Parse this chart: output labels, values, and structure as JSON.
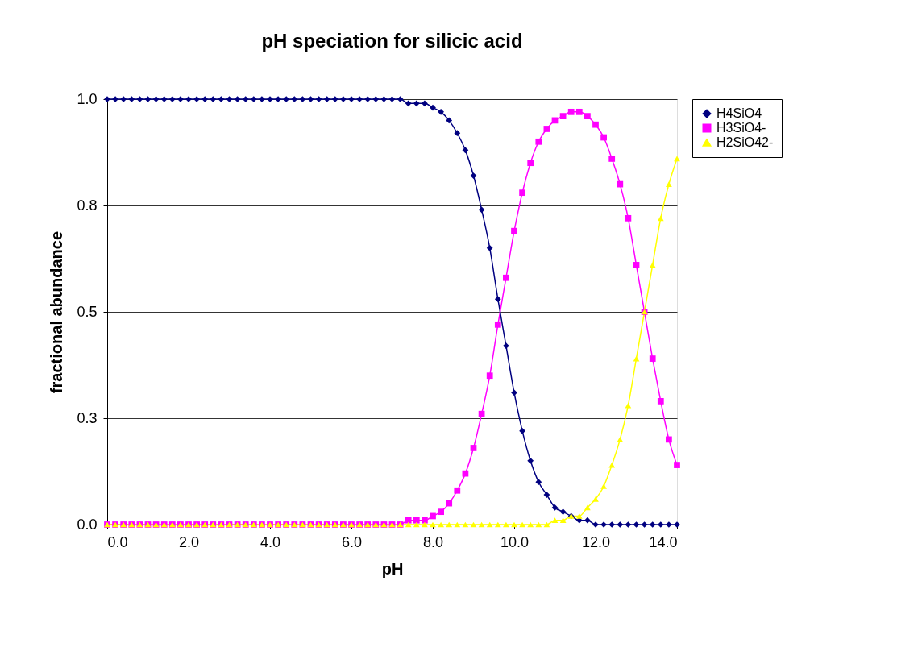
{
  "chart_data": {
    "type": "line",
    "title": "pH speciation for silicic acid",
    "xlabel": "pH",
    "ylabel": "fractional abundance",
    "x": [
      0,
      0.2,
      0.4,
      0.6,
      0.8,
      1,
      1.2,
      1.4,
      1.6,
      1.8,
      2,
      2.2,
      2.4,
      2.6,
      2.8,
      3,
      3.2,
      3.4,
      3.6,
      3.8,
      4,
      4.2,
      4.4,
      4.6,
      4.8,
      5,
      5.2,
      5.4,
      5.6,
      5.8,
      6,
      6.2,
      6.4,
      6.6,
      6.8,
      7,
      7.2,
      7.4,
      7.6,
      7.8,
      8,
      8.2,
      8.4,
      8.6,
      8.8,
      9,
      9.2,
      9.4,
      9.6,
      9.8,
      10,
      10.2,
      10.4,
      10.6,
      10.8,
      11,
      11.2,
      11.4,
      11.6,
      11.8,
      12,
      12.2,
      12.4,
      12.6,
      12.8,
      13,
      13.2,
      13.4,
      13.6,
      13.8,
      14
    ],
    "series": [
      {
        "name": "H4SiO4",
        "color": "#000080",
        "marker": "diamond",
        "values": [
          1,
          1,
          1,
          1,
          1,
          1,
          1,
          1,
          1,
          1,
          1,
          1,
          1,
          1,
          1,
          1,
          1,
          1,
          1,
          1,
          1,
          1,
          1,
          1,
          1,
          1,
          1,
          1,
          1,
          1,
          1,
          1,
          1,
          1,
          1,
          1,
          1,
          0.99,
          0.99,
          0.99,
          0.98,
          0.97,
          0.95,
          0.92,
          0.88,
          0.82,
          0.74,
          0.65,
          0.53,
          0.42,
          0.31,
          0.22,
          0.15,
          0.1,
          0.07,
          0.04,
          0.03,
          0.02,
          0.01,
          0.01,
          0,
          0,
          0,
          0,
          0,
          0,
          0,
          0,
          0,
          0,
          0
        ]
      },
      {
        "name": "H3SiO4-",
        "color": "#ff00ff",
        "marker": "square",
        "values": [
          0,
          0,
          0,
          0,
          0,
          0,
          0,
          0,
          0,
          0,
          0,
          0,
          0,
          0,
          0,
          0,
          0,
          0,
          0,
          0,
          0,
          0,
          0,
          0,
          0,
          0,
          0,
          0,
          0,
          0,
          0,
          0,
          0,
          0,
          0,
          0,
          0,
          0.01,
          0.01,
          0.01,
          0.02,
          0.03,
          0.05,
          0.08,
          0.12,
          0.18,
          0.26,
          0.35,
          0.47,
          0.58,
          0.69,
          0.78,
          0.85,
          0.9,
          0.93,
          0.95,
          0.96,
          0.97,
          0.97,
          0.96,
          0.94,
          0.91,
          0.86,
          0.8,
          0.72,
          0.61,
          0.5,
          0.39,
          0.29,
          0.2,
          0.14
        ]
      },
      {
        "name": "H2SiO42-",
        "color": "#ffff00",
        "marker": "triangle",
        "values": [
          0,
          0,
          0,
          0,
          0,
          0,
          0,
          0,
          0,
          0,
          0,
          0,
          0,
          0,
          0,
          0,
          0,
          0,
          0,
          0,
          0,
          0,
          0,
          0,
          0,
          0,
          0,
          0,
          0,
          0,
          0,
          0,
          0,
          0,
          0,
          0,
          0,
          0,
          0,
          0,
          0,
          0,
          0,
          0,
          0,
          0,
          0,
          0,
          0,
          0,
          0,
          0,
          0,
          0,
          0,
          0.01,
          0.01,
          0.02,
          0.02,
          0.04,
          0.06,
          0.09,
          0.14,
          0.2,
          0.28,
          0.39,
          0.5,
          0.61,
          0.72,
          0.8,
          0.86
        ]
      }
    ],
    "xlim": [
      0,
      14
    ],
    "xticks": [
      {
        "value": 0,
        "label": "0.0"
      },
      {
        "value": 2,
        "label": "2.0"
      },
      {
        "value": 4,
        "label": "4.0"
      },
      {
        "value": 6,
        "label": "6.0"
      },
      {
        "value": 8,
        "label": "8.0"
      },
      {
        "value": 10,
        "label": "10.0"
      },
      {
        "value": 12,
        "label": "12.0"
      },
      {
        "value": 14,
        "label": "14.0"
      }
    ],
    "ylim": [
      0,
      1
    ],
    "yticks": [
      {
        "value": 0,
        "label": "0.0"
      },
      {
        "value": 0.25,
        "label": "0.3"
      },
      {
        "value": 0.5,
        "label": "0.5"
      },
      {
        "value": 0.75,
        "label": "0.8"
      },
      {
        "value": 1,
        "label": "1.0"
      }
    ],
    "grid": "y",
    "legend": "right",
    "line_style": "solid"
  }
}
